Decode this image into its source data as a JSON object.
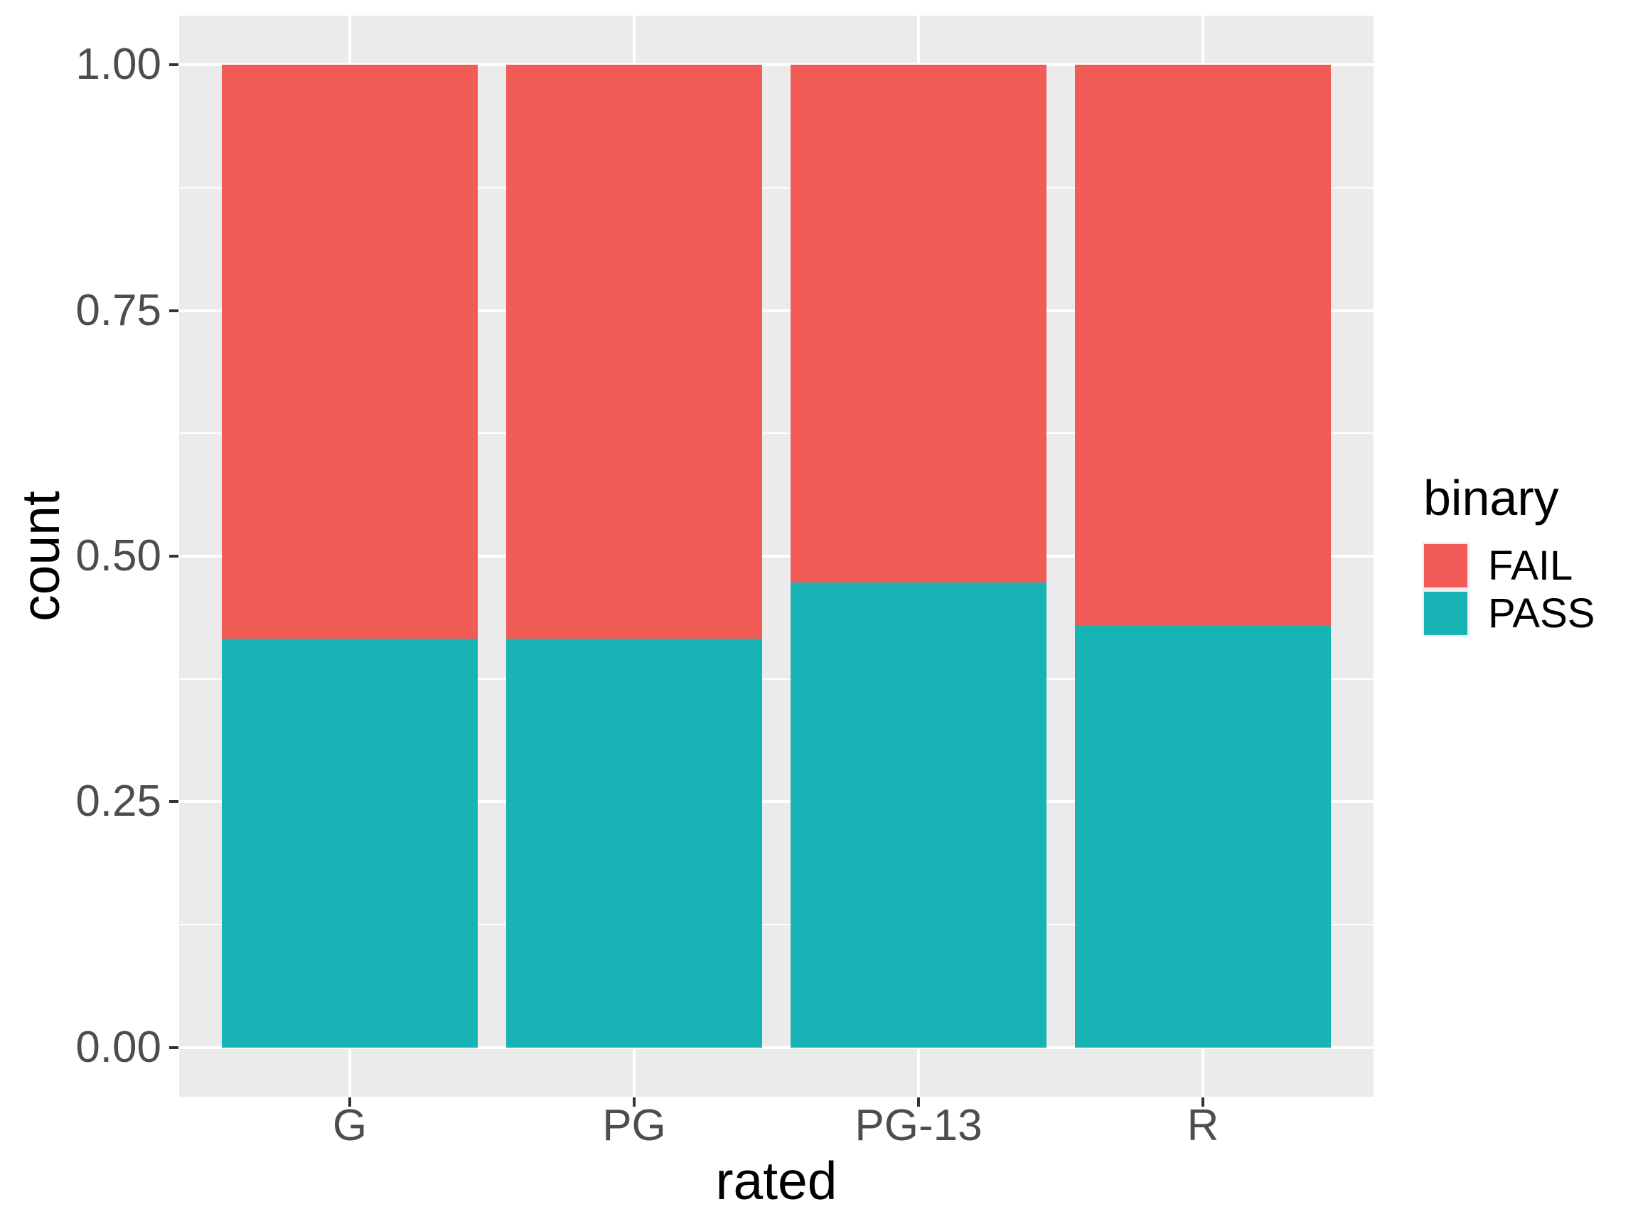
{
  "figure": {
    "background": "#FFFFFF",
    "panel_background": "#EBEBEB",
    "gridline_color": "#FFFFFF",
    "tick_mark_color": "#333333",
    "tick_label_color": "#4D4D4D",
    "axis_title_color": "#000000"
  },
  "chart_data": {
    "type": "bar",
    "subtype": "stacked-filled-proportion",
    "title": "",
    "xlabel": "rated",
    "ylabel": "count",
    "categories": [
      "G",
      "PG",
      "PG-13",
      "R"
    ],
    "series": [
      {
        "name": "FAIL",
        "color": "#F15C57",
        "values": [
          0.584,
          0.584,
          0.527,
          0.571
        ]
      },
      {
        "name": "PASS",
        "color": "#18B3B5",
        "values": [
          0.416,
          0.416,
          0.473,
          0.429
        ]
      }
    ],
    "stack_order_bottom_to_top": [
      "PASS",
      "FAIL"
    ],
    "ylim": [
      0,
      1
    ],
    "y_major_ticks": [
      0,
      0.25,
      0.5,
      0.75,
      1
    ],
    "y_major_tick_labels": [
      "0.00",
      "0.25",
      "0.50",
      "0.75",
      "1.00"
    ],
    "y_minor_ticks": [
      0.125,
      0.375,
      0.625,
      0.875
    ],
    "grid": "horizontal major+minor, vertical major at categories",
    "legend": {
      "title": "binary",
      "position": "right",
      "entries": [
        {
          "label": "FAIL",
          "color": "#F15C57"
        },
        {
          "label": "PASS",
          "color": "#18B3B5"
        }
      ]
    }
  }
}
